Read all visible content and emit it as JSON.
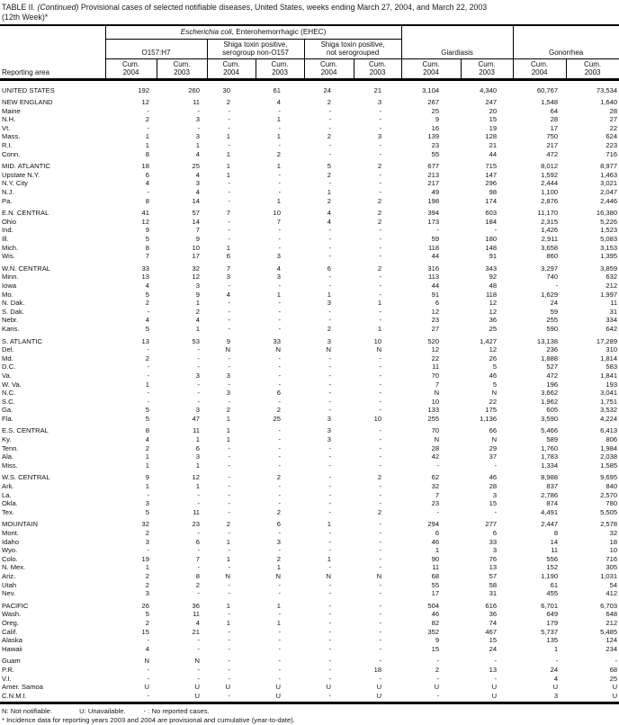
{
  "title": {
    "prefix": "TABLE II. ",
    "continued": "(Continued)",
    "rest": " Provisional cases of selected notifiable diseases, United States, weeks ending March 27, 2004, and March 22, 2003",
    "line2": "(12th Week)*"
  },
  "table": {
    "header": {
      "reporting_area": "Reporting area",
      "ehec_italic": "Escherichia coli",
      "ehec_rest": ", Enterohemorrhagic (EHEC)",
      "o157": "O157:H7",
      "serogroup_l1": "Shiga toxin positive,",
      "serogroup_l2": "serogroup non-O157",
      "notsero_l1": "Shiga toxin positive,",
      "notsero_l2": "not serogrouped",
      "giardiasis": "Giardiasis",
      "gonorrhea": "Gonorrhea",
      "cum": "Cum.",
      "years": [
        "2004",
        "2003",
        "2004",
        "2003",
        "2004",
        "2003",
        "2004",
        "2003",
        "2004",
        "2003"
      ]
    },
    "col_keys": [
      "o157-cum-2004",
      "o157-cum-2003",
      "serogroup-non-o157-cum-2004",
      "serogroup-non-o157-cum-2003",
      "not-serogrouped-cum-2004",
      "not-serogrouped-cum-2003",
      "giardiasis-cum-2004",
      "giardiasis-cum-2003",
      "gonorrhea-cum-2004",
      "gonorrhea-cum-2003"
    ],
    "rows": [
      {
        "area": "UNITED STATES",
        "group_start": false,
        "values": [
          "192",
          "260",
          "30",
          "61",
          "24",
          "21",
          "3,104",
          "4,340",
          "60,767",
          "73,534"
        ]
      },
      {
        "area": "NEW ENGLAND",
        "group_start": true,
        "values": [
          "12",
          "11",
          "2",
          "4",
          "2",
          "3",
          "267",
          "247",
          "1,548",
          "1,640"
        ]
      },
      {
        "area": "Maine",
        "group_start": false,
        "values": [
          "-",
          "-",
          "-",
          "-",
          "-",
          "-",
          "25",
          "20",
          "64",
          "28"
        ]
      },
      {
        "area": "N.H.",
        "group_start": false,
        "values": [
          "2",
          "3",
          "-",
          "1",
          "-",
          "-",
          "9",
          "15",
          "28",
          "27"
        ]
      },
      {
        "area": "Vt.",
        "group_start": false,
        "values": [
          "-",
          "-",
          "-",
          "-",
          "-",
          "-",
          "16",
          "19",
          "17",
          "22"
        ]
      },
      {
        "area": "Mass.",
        "group_start": false,
        "values": [
          "1",
          "3",
          "1",
          "1",
          "2",
          "3",
          "139",
          "128",
          "750",
          "624"
        ]
      },
      {
        "area": "R.I.",
        "group_start": false,
        "values": [
          "1",
          "1",
          "-",
          "-",
          "-",
          "-",
          "23",
          "21",
          "217",
          "223"
        ]
      },
      {
        "area": "Conn.",
        "group_start": false,
        "values": [
          "8",
          "4",
          "1",
          "2",
          "-",
          "-",
          "55",
          "44",
          "472",
          "716"
        ]
      },
      {
        "area": "MID. ATLANTIC",
        "group_start": true,
        "values": [
          "18",
          "25",
          "1",
          "1",
          "5",
          "2",
          "677",
          "715",
          "8,012",
          "8,977"
        ]
      },
      {
        "area": "Upstate N.Y.",
        "group_start": false,
        "values": [
          "6",
          "4",
          "1",
          "-",
          "2",
          "-",
          "213",
          "147",
          "1,592",
          "1,463"
        ]
      },
      {
        "area": "N.Y. City",
        "group_start": false,
        "values": [
          "4",
          "3",
          "-",
          "-",
          "-",
          "-",
          "217",
          "296",
          "2,444",
          "3,021"
        ]
      },
      {
        "area": "N.J.",
        "group_start": false,
        "values": [
          "-",
          "4",
          "-",
          "-",
          "1",
          "-",
          "49",
          "98",
          "1,100",
          "2,047"
        ]
      },
      {
        "area": "Pa.",
        "group_start": false,
        "values": [
          "8",
          "14",
          "-",
          "1",
          "2",
          "2",
          "198",
          "174",
          "2,876",
          "2,446"
        ]
      },
      {
        "area": "E.N. CENTRAL",
        "group_start": true,
        "values": [
          "41",
          "57",
          "7",
          "10",
          "4",
          "2",
          "394",
          "603",
          "11,170",
          "16,380"
        ]
      },
      {
        "area": "Ohio",
        "group_start": false,
        "values": [
          "12",
          "14",
          "-",
          "7",
          "4",
          "2",
          "173",
          "184",
          "2,315",
          "5,226"
        ]
      },
      {
        "area": "Ind.",
        "group_start": false,
        "values": [
          "9",
          "7",
          "-",
          "-",
          "-",
          "-",
          "-",
          "-",
          "1,426",
          "1,523"
        ]
      },
      {
        "area": "Ill.",
        "group_start": false,
        "values": [
          "5",
          "9",
          "-",
          "-",
          "-",
          "-",
          "59",
          "180",
          "2,911",
          "5,083"
        ]
      },
      {
        "area": "Mich.",
        "group_start": false,
        "values": [
          "8",
          "10",
          "1",
          "-",
          "-",
          "-",
          "118",
          "148",
          "3,658",
          "3,153"
        ]
      },
      {
        "area": "Wis.",
        "group_start": false,
        "values": [
          "7",
          "17",
          "6",
          "3",
          "-",
          "-",
          "44",
          "91",
          "860",
          "1,395"
        ]
      },
      {
        "area": "W.N. CENTRAL",
        "group_start": true,
        "values": [
          "33",
          "32",
          "7",
          "4",
          "6",
          "2",
          "316",
          "343",
          "3,297",
          "3,859"
        ]
      },
      {
        "area": "Minn.",
        "group_start": false,
        "values": [
          "13",
          "12",
          "3",
          "3",
          "-",
          "-",
          "113",
          "92",
          "740",
          "632"
        ]
      },
      {
        "area": "Iowa",
        "group_start": false,
        "values": [
          "4",
          "3",
          "-",
          "-",
          "-",
          "-",
          "44",
          "48",
          "-",
          "212"
        ]
      },
      {
        "area": "Mo.",
        "group_start": false,
        "values": [
          "5",
          "9",
          "4",
          "1",
          "1",
          "-",
          "91",
          "118",
          "1,629",
          "1,997"
        ]
      },
      {
        "area": "N. Dak.",
        "group_start": false,
        "values": [
          "2",
          "1",
          "-",
          "-",
          "3",
          "1",
          "6",
          "12",
          "24",
          "11"
        ]
      },
      {
        "area": "S. Dak.",
        "group_start": false,
        "values": [
          "-",
          "2",
          "-",
          "-",
          "-",
          "-",
          "12",
          "12",
          "59",
          "31"
        ]
      },
      {
        "area": "Nebr.",
        "group_start": false,
        "values": [
          "4",
          "4",
          "-",
          "-",
          "-",
          "-",
          "23",
          "36",
          "255",
          "334"
        ]
      },
      {
        "area": "Kans.",
        "group_start": false,
        "values": [
          "5",
          "1",
          "-",
          "-",
          "2",
          "1",
          "27",
          "25",
          "590",
          "642"
        ]
      },
      {
        "area": "S. ATLANTIC",
        "group_start": true,
        "values": [
          "13",
          "53",
          "9",
          "33",
          "3",
          "10",
          "520",
          "1,427",
          "13,138",
          "17,289"
        ]
      },
      {
        "area": "Del.",
        "group_start": false,
        "values": [
          "-",
          "-",
          "N",
          "N",
          "N",
          "N",
          "12",
          "12",
          "236",
          "310"
        ]
      },
      {
        "area": "Md.",
        "group_start": false,
        "values": [
          "2",
          "-",
          "-",
          "-",
          "-",
          "-",
          "22",
          "26",
          "1,888",
          "1,814"
        ]
      },
      {
        "area": "D.C.",
        "group_start": false,
        "values": [
          "-",
          "-",
          "-",
          "-",
          "-",
          "-",
          "11",
          "5",
          "527",
          "583"
        ]
      },
      {
        "area": "Va.",
        "group_start": false,
        "values": [
          "-",
          "3",
          "3",
          "-",
          "-",
          "-",
          "70",
          "46",
          "472",
          "1,841"
        ]
      },
      {
        "area": "W. Va.",
        "group_start": false,
        "values": [
          "1",
          "-",
          "-",
          "-",
          "-",
          "-",
          "7",
          "5",
          "196",
          "193"
        ]
      },
      {
        "area": "N.C.",
        "group_start": false,
        "values": [
          "-",
          "-",
          "3",
          "6",
          "-",
          "-",
          "N",
          "N",
          "3,662",
          "3,041"
        ]
      },
      {
        "area": "S.C.",
        "group_start": false,
        "values": [
          "-",
          "-",
          "-",
          "-",
          "-",
          "-",
          "10",
          "22",
          "1,962",
          "1,751"
        ]
      },
      {
        "area": "Ga.",
        "group_start": false,
        "values": [
          "5",
          "3",
          "2",
          "2",
          "-",
          "-",
          "133",
          "175",
          "605",
          "3,532"
        ]
      },
      {
        "area": "Fla.",
        "group_start": false,
        "values": [
          "5",
          "47",
          "1",
          "25",
          "3",
          "10",
          "255",
          "1,136",
          "3,590",
          "4,224"
        ]
      },
      {
        "area": "E.S. CENTRAL",
        "group_start": true,
        "values": [
          "8",
          "11",
          "1",
          "-",
          "3",
          "-",
          "70",
          "66",
          "5,466",
          "6,413"
        ]
      },
      {
        "area": "Ky.",
        "group_start": false,
        "values": [
          "4",
          "1",
          "1",
          "-",
          "3",
          "-",
          "N",
          "N",
          "589",
          "806"
        ]
      },
      {
        "area": "Tenn.",
        "group_start": false,
        "values": [
          "2",
          "6",
          "-",
          "-",
          "-",
          "-",
          "28",
          "29",
          "1,760",
          "1,984"
        ]
      },
      {
        "area": "Ala.",
        "group_start": false,
        "values": [
          "1",
          "3",
          "-",
          "-",
          "-",
          "-",
          "42",
          "37",
          "1,783",
          "2,038"
        ]
      },
      {
        "area": "Miss.",
        "group_start": false,
        "values": [
          "1",
          "1",
          "-",
          "-",
          "-",
          "-",
          "-",
          "-",
          "1,334",
          "1,585"
        ]
      },
      {
        "area": "W.S. CENTRAL",
        "group_start": true,
        "values": [
          "9",
          "12",
          "-",
          "2",
          "-",
          "2",
          "62",
          "46",
          "8,988",
          "9,695"
        ]
      },
      {
        "area": "Ark.",
        "group_start": false,
        "values": [
          "1",
          "1",
          "-",
          "-",
          "-",
          "-",
          "32",
          "28",
          "837",
          "840"
        ]
      },
      {
        "area": "La.",
        "group_start": false,
        "values": [
          "-",
          "-",
          "-",
          "-",
          "-",
          "-",
          "7",
          "3",
          "2,786",
          "2,570"
        ]
      },
      {
        "area": "Okla.",
        "group_start": false,
        "values": [
          "3",
          "-",
          "-",
          "-",
          "-",
          "-",
          "23",
          "15",
          "874",
          "780"
        ]
      },
      {
        "area": "Tex.",
        "group_start": false,
        "values": [
          "5",
          "11",
          "-",
          "2",
          "-",
          "2",
          "-",
          "-",
          "4,491",
          "5,505"
        ]
      },
      {
        "area": "MOUNTAIN",
        "group_start": true,
        "values": [
          "32",
          "23",
          "2",
          "6",
          "1",
          "-",
          "294",
          "277",
          "2,447",
          "2,578"
        ]
      },
      {
        "area": "Mont.",
        "group_start": false,
        "values": [
          "2",
          "-",
          "-",
          "-",
          "-",
          "-",
          "6",
          "6",
          "8",
          "32"
        ]
      },
      {
        "area": "Idaho",
        "group_start": false,
        "values": [
          "3",
          "6",
          "1",
          "3",
          "-",
          "-",
          "46",
          "33",
          "14",
          "18"
        ]
      },
      {
        "area": "Wyo.",
        "group_start": false,
        "values": [
          "-",
          "-",
          "-",
          "-",
          "-",
          "-",
          "1",
          "3",
          "11",
          "10"
        ]
      },
      {
        "area": "Colo.",
        "group_start": false,
        "values": [
          "19",
          "7",
          "1",
          "2",
          "1",
          "-",
          "90",
          "76",
          "556",
          "716"
        ]
      },
      {
        "area": "N. Mex.",
        "group_start": false,
        "values": [
          "1",
          "-",
          "-",
          "1",
          "-",
          "-",
          "11",
          "13",
          "152",
          "305"
        ]
      },
      {
        "area": "Ariz.",
        "group_start": false,
        "values": [
          "2",
          "8",
          "N",
          "N",
          "N",
          "N",
          "68",
          "57",
          "1,190",
          "1,031"
        ]
      },
      {
        "area": "Utah",
        "group_start": false,
        "values": [
          "2",
          "2",
          "-",
          "-",
          "-",
          "-",
          "55",
          "58",
          "61",
          "54"
        ]
      },
      {
        "area": "Nev.",
        "group_start": false,
        "values": [
          "3",
          "-",
          "-",
          "-",
          "-",
          "-",
          "17",
          "31",
          "455",
          "412"
        ]
      },
      {
        "area": "PACIFIC",
        "group_start": true,
        "values": [
          "26",
          "36",
          "1",
          "1",
          "-",
          "-",
          "504",
          "616",
          "6,701",
          "6,703"
        ]
      },
      {
        "area": "Wash.",
        "group_start": false,
        "values": [
          "5",
          "11",
          "-",
          "-",
          "-",
          "-",
          "46",
          "36",
          "649",
          "648"
        ]
      },
      {
        "area": "Oreg.",
        "group_start": false,
        "values": [
          "2",
          "4",
          "1",
          "1",
          "-",
          "-",
          "82",
          "74",
          "179",
          "212"
        ]
      },
      {
        "area": "Calif.",
        "group_start": false,
        "values": [
          "15",
          "21",
          "-",
          "-",
          "-",
          "-",
          "352",
          "467",
          "5,737",
          "5,485"
        ]
      },
      {
        "area": "Alaska",
        "group_start": false,
        "values": [
          "-",
          "-",
          "-",
          "-",
          "-",
          "-",
          "9",
          "15",
          "135",
          "124"
        ]
      },
      {
        "area": "Hawaii",
        "group_start": false,
        "values": [
          "4",
          "-",
          "-",
          "-",
          "-",
          "-",
          "15",
          "24",
          "1",
          "234"
        ]
      },
      {
        "area": "Guam",
        "group_start": true,
        "values": [
          "N",
          "N",
          "-",
          "-",
          "-",
          "-",
          "-",
          "-",
          "-",
          "-"
        ]
      },
      {
        "area": "P.R.",
        "group_start": false,
        "values": [
          "-",
          "-",
          "-",
          "-",
          "-",
          "18",
          "2",
          "13",
          "24",
          "68"
        ]
      },
      {
        "area": "V.I.",
        "group_start": false,
        "values": [
          "-",
          "-",
          "-",
          "-",
          "-",
          "-",
          "-",
          "-",
          "4",
          "25"
        ]
      },
      {
        "area": "Amer. Samoa",
        "group_start": false,
        "values": [
          "U",
          "U",
          "U",
          "U",
          "U",
          "U",
          "U",
          "U",
          "U",
          "U"
        ]
      },
      {
        "area": "C.N.M.I.",
        "group_start": false,
        "values": [
          "-",
          "U",
          "-",
          "U",
          "-",
          "U",
          "-",
          "U",
          "3",
          "U"
        ]
      }
    ]
  },
  "footnotes": {
    "legend_n": "N: Not notifiable.",
    "legend_u": "U: Unavailable.",
    "legend_dash": "- : No reported cases.",
    "asterisk": "* Incidence data for reporting years 2003 and 2004 are provisional and cumulative (year-to-date)."
  }
}
